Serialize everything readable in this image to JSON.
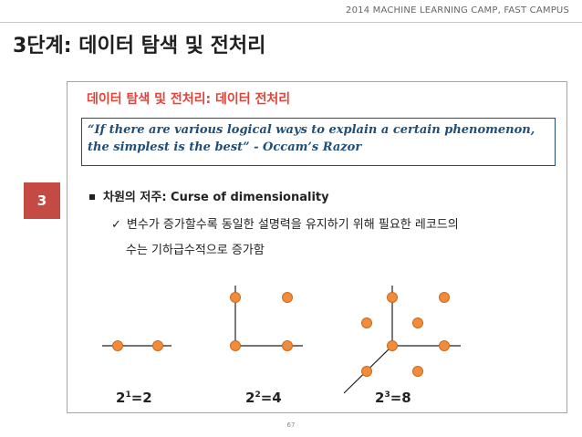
{
  "header": {
    "event": "2014 MACHINE LEARNING CAMP, FAST CAMPUS"
  },
  "title": "3단계: 데이터 탐색 및 전처리",
  "step_badge": "3",
  "section_heading": "데이터 탐색 및 전처리: 데이터 전처리",
  "quote": {
    "line1": "“If there are various logical ways to explain a certain phenomenon,",
    "line2": "the simplest is the best” - Occam’s Razor"
  },
  "bullet": {
    "text": "차원의 저주: Curse of dimensionality"
  },
  "sub_bullet": {
    "line1": "변수가 증가할수록 동일한 설명력을 유지하기 위해 필요한 레코드의",
    "line2": "수는 기하급수적으로 증가함"
  },
  "formulas": [
    {
      "base": "2",
      "exp": "1",
      "result": "=2"
    },
    {
      "base": "2",
      "exp": "2",
      "result": "=4"
    },
    {
      "base": "2",
      "exp": "3",
      "result": "=8"
    }
  ],
  "colors": {
    "accent_red": "#e0443a",
    "badge": "#c44a44",
    "quote_blue": "#1f4e79",
    "point": "#f28c3a"
  },
  "icons": {
    "check": "✓"
  },
  "page_number": "67"
}
